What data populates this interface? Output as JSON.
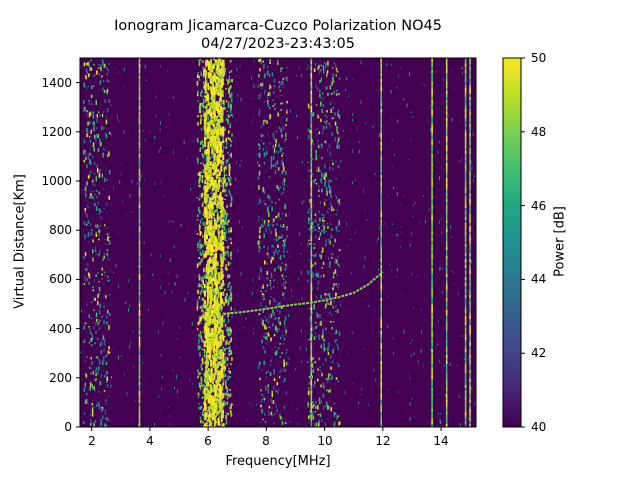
{
  "chart_data": {
    "type": "heatmap",
    "title": "Ionogram Jicamarca-Cuzco Polarization NO45",
    "subtitle": "04/27/2023-23:43:05",
    "xlabel": "Frequency[MHz]",
    "ylabel": "Virtual Distance[Km]",
    "xlim": [
      1.6,
      15.2
    ],
    "ylim": [
      0,
      1500
    ],
    "xticks": [
      2,
      4,
      6,
      8,
      10,
      12,
      14
    ],
    "yticks": [
      0,
      200,
      400,
      600,
      800,
      1000,
      1200,
      1400
    ],
    "colormap": "viridis",
    "colorbar": {
      "label": "Power [dB]",
      "range": [
        40,
        50
      ],
      "ticks": [
        40,
        42,
        44,
        46,
        48,
        50
      ]
    },
    "background_level_db": 40,
    "interference_lines_mhz": [
      3.65,
      9.55,
      11.95,
      13.7,
      14.2,
      14.85,
      15.0
    ],
    "noisy_bands_mhz": [
      [
        5.6,
        6.8
      ],
      [
        7.7,
        8.7
      ],
      [
        9.4,
        10.5
      ],
      [
        1.7,
        2.6
      ]
    ],
    "echo_trace": {
      "freq_mhz": [
        6.5,
        7.0,
        7.5,
        8.0,
        8.5,
        9.0,
        9.5,
        10.0,
        10.5,
        11.0,
        11.5,
        12.0
      ],
      "virtual_distance_km": [
        460,
        465,
        472,
        480,
        490,
        498,
        505,
        515,
        528,
        545,
        580,
        630
      ]
    }
  }
}
